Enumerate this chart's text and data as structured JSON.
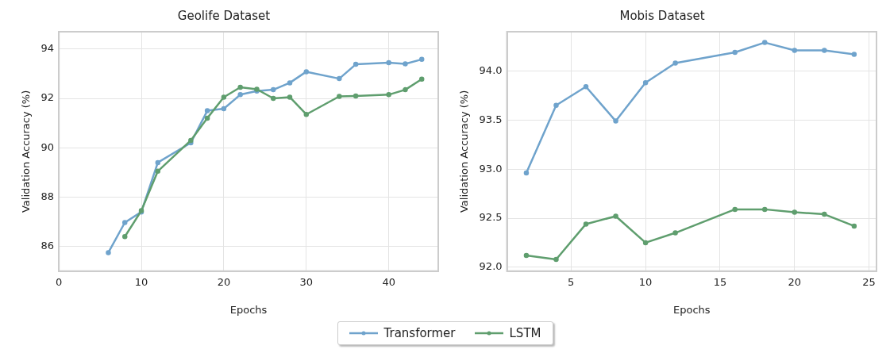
{
  "chart_data": [
    {
      "type": "line",
      "title": "Geolife Dataset",
      "xlabel": "Epochs",
      "ylabel": "Validation Accuracy (%)",
      "xlim": [
        0,
        46
      ],
      "xticks": [
        0,
        10,
        20,
        30,
        40
      ],
      "ylim": [
        85,
        94.7
      ],
      "yticks": [
        86,
        88,
        90,
        92,
        94
      ],
      "grid": true,
      "legend": "bottom",
      "marker": "circle",
      "line_style": "solid",
      "series": [
        {
          "name": "Transformer",
          "color": "#6fa3cc",
          "x": [
            6,
            8,
            10,
            12,
            16,
            18,
            20,
            22,
            24,
            26,
            28,
            30,
            34,
            36,
            40,
            42,
            44
          ],
          "values": [
            85.75,
            86.97,
            87.4,
            89.4,
            90.2,
            91.5,
            91.58,
            92.15,
            92.3,
            92.35,
            92.63,
            93.08,
            92.8,
            93.38,
            93.45,
            93.4,
            93.58
          ]
        },
        {
          "name": "LSTM",
          "color": "#5f9e6e",
          "x": [
            8,
            10,
            12,
            16,
            18,
            20,
            22,
            24,
            26,
            28,
            30,
            34,
            36,
            40,
            42,
            44
          ],
          "values": [
            86.4,
            87.45,
            89.05,
            90.3,
            91.2,
            92.05,
            92.45,
            92.37,
            92.0,
            92.05,
            91.35,
            92.08,
            92.1,
            92.15,
            92.35,
            92.78
          ]
        }
      ]
    },
    {
      "type": "line",
      "title": "Mobis Dataset",
      "xlabel": "Epochs",
      "ylabel": "Validation Accuracy (%)",
      "xlim": [
        0.7,
        25.5
      ],
      "xticks": [
        5,
        10,
        15,
        20,
        25
      ],
      "ylim": [
        91.96,
        94.4
      ],
      "yticks": [
        {
          "value": 92,
          "label": "92.0"
        },
        {
          "value": 92.5,
          "label": "92.5"
        },
        {
          "value": 93,
          "label": "93.0"
        },
        {
          "value": 93.5,
          "label": "93.5"
        },
        {
          "value": 94,
          "label": "94.0"
        }
      ],
      "grid": true,
      "marker": "circle",
      "line_style": "solid",
      "series": [
        {
          "name": "Transformer",
          "color": "#6fa3cc",
          "x": [
            2,
            4,
            6,
            8,
            10,
            12,
            16,
            18,
            20,
            22,
            24
          ],
          "values": [
            92.96,
            93.65,
            93.84,
            93.49,
            93.88,
            94.08,
            94.19,
            94.29,
            94.21,
            94.21,
            94.17
          ]
        },
        {
          "name": "LSTM",
          "color": "#5f9e6e",
          "x": [
            2,
            4,
            6,
            8,
            10,
            12,
            16,
            18,
            20,
            22,
            24
          ],
          "values": [
            92.12,
            92.08,
            92.44,
            92.52,
            92.25,
            92.35,
            92.59,
            92.59,
            92.56,
            92.54,
            92.42
          ]
        }
      ]
    }
  ]
}
